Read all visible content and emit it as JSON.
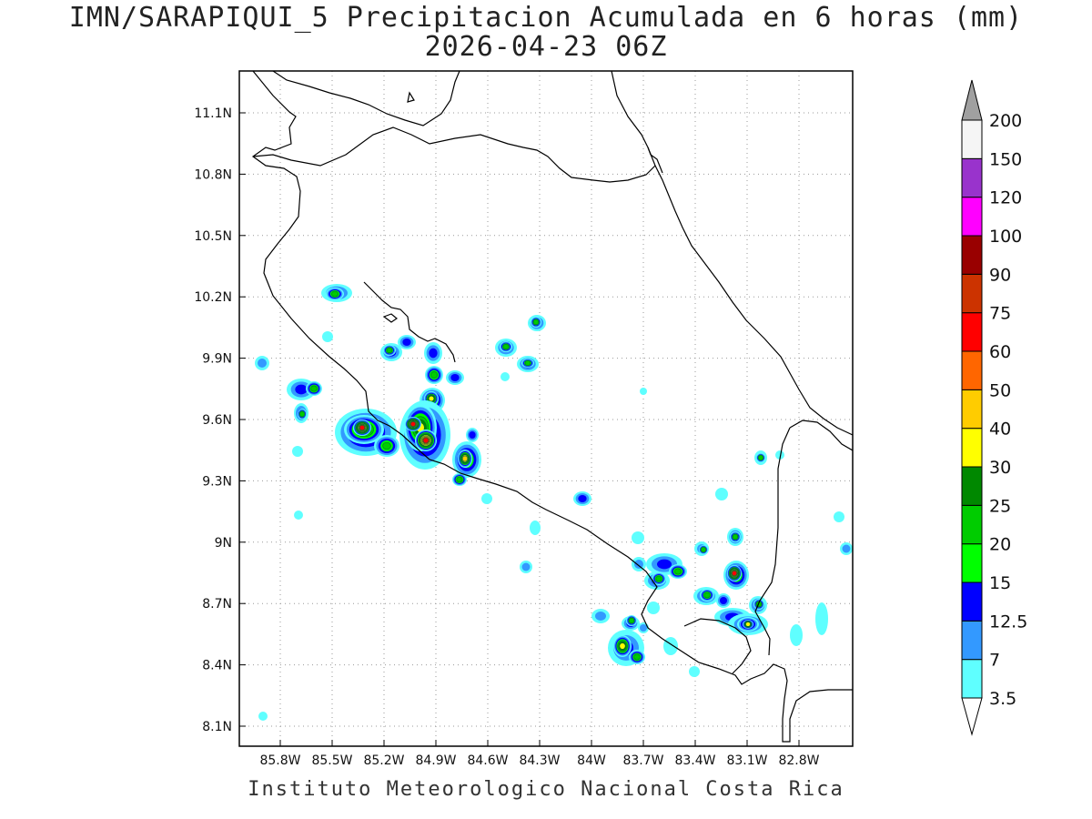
{
  "title": "IMN/SARAPIQUI_5 Precipitacion Acumulada en 6 horas (mm)",
  "subtitle": "2026-04-23 06Z",
  "footer": "Instituto Meteorologico Nacional Costa Rica",
  "map": {
    "lat_ticks": [
      "11.1N",
      "10.8N",
      "10.5N",
      "10.2N",
      "9.9N",
      "9.6N",
      "9.3N",
      "9N",
      "8.7N",
      "8.4N",
      "8.1N"
    ],
    "lon_ticks": [
      "85.8W",
      "85.5W",
      "85.2W",
      "84.9W",
      "84.6W",
      "84.3W",
      "84W",
      "83.7W",
      "83.4W",
      "83.1W",
      "82.8W"
    ],
    "grid": true
  },
  "colorbar": {
    "levels": [
      "3.5",
      "7",
      "12.5",
      "15",
      "20",
      "25",
      "30",
      "40",
      "50",
      "60",
      "75",
      "90",
      "100",
      "120",
      "150",
      "200"
    ],
    "colors": [
      "#ffffff",
      "#5fffff",
      "#3399ff",
      "#0000ff",
      "#00ff00",
      "#00cc00",
      "#008800",
      "#ffff00",
      "#ffcc00",
      "#ff6600",
      "#ff0000",
      "#cc3300",
      "#990000",
      "#ff00ff",
      "#9933cc",
      "#f5f5f5",
      "#a0a0a0"
    ]
  }
}
